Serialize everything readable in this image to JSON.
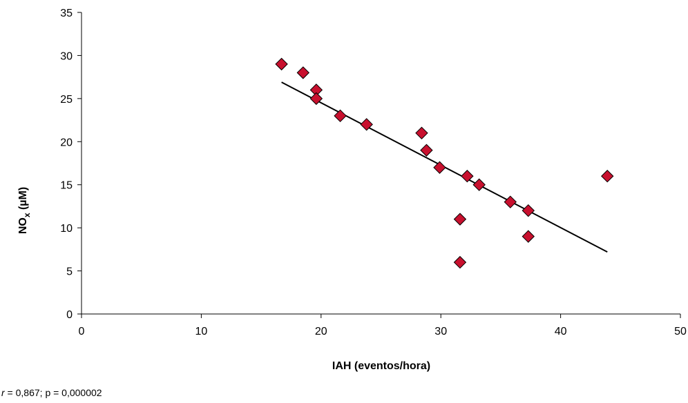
{
  "chart_data": {
    "type": "scatter",
    "title": "",
    "xlabel": "IAH (eventos/hora)",
    "ylabel_main": "NO",
    "ylabel_sub": "x",
    "ylabel_unit": " (µM)",
    "xlim": [
      0,
      50
    ],
    "ylim": [
      0,
      35
    ],
    "x_ticks": [
      0,
      10,
      20,
      30,
      40,
      50
    ],
    "y_ticks": [
      0,
      5,
      10,
      15,
      20,
      25,
      30,
      35
    ],
    "grid": false,
    "legend": "none",
    "marker": "diamond",
    "marker_color": "#c8102e",
    "points": [
      {
        "x": 16.7,
        "y": 29
      },
      {
        "x": 18.5,
        "y": 28
      },
      {
        "x": 19.6,
        "y": 26
      },
      {
        "x": 19.6,
        "y": 25
      },
      {
        "x": 21.6,
        "y": 23
      },
      {
        "x": 23.8,
        "y": 22
      },
      {
        "x": 28.4,
        "y": 21
      },
      {
        "x": 28.8,
        "y": 19
      },
      {
        "x": 29.9,
        "y": 17
      },
      {
        "x": 32.2,
        "y": 16
      },
      {
        "x": 33.2,
        "y": 15
      },
      {
        "x": 35.8,
        "y": 13
      },
      {
        "x": 37.3,
        "y": 12
      },
      {
        "x": 31.6,
        "y": 11
      },
      {
        "x": 37.3,
        "y": 9
      },
      {
        "x": 31.6,
        "y": 6
      },
      {
        "x": 43.9,
        "y": 16
      }
    ],
    "trendline": {
      "x": [
        16.7,
        43.9
      ],
      "y": [
        26.9,
        7.2
      ]
    }
  },
  "note": {
    "r_symbol": "r",
    "text": " = 0,867; p = 0,000002"
  }
}
